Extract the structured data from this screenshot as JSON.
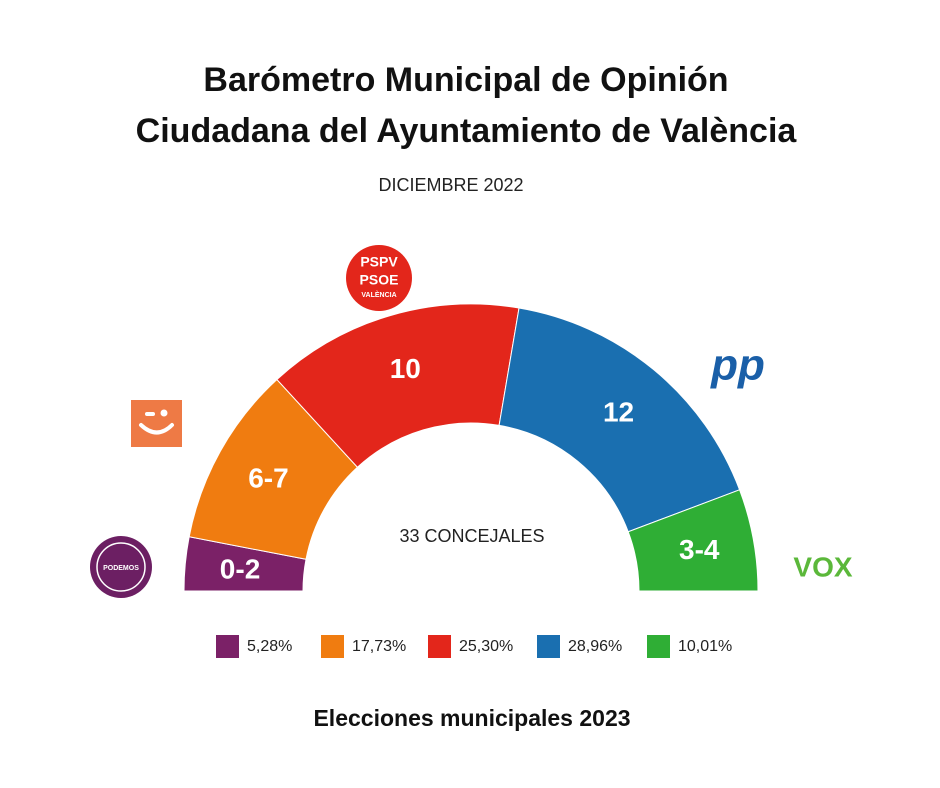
{
  "chart_data": {
    "type": "semicircle",
    "title": [
      "Barómetro Municipal de Opinión",
      "Ciudadana del Ayuntamiento de València"
    ],
    "subtitle": "DICIEMBRE 2022",
    "center_label": "33 CONCEJALES",
    "footer": "Elecciones municipales 2023",
    "logos": [
      [
        "PODEMOS"
      ],
      null,
      [
        "PSPV",
        "PSOE",
        "VALÈNCIA"
      ],
      [
        "pp"
      ],
      [
        "VOX"
      ]
    ],
    "seat_labels": [
      "0-2",
      "6-7",
      "10",
      "12",
      "3-4"
    ],
    "values": [
      5.28,
      17.73,
      25.3,
      28.96,
      10.01
    ],
    "value_labels": [
      "5,28%",
      "17,73%",
      "25,30%",
      "28,96%",
      "10,01%"
    ],
    "colors": [
      "#7b2167",
      "#f07c10",
      "#e3261b",
      "#1a6fb0",
      "#2fae35"
    ]
  }
}
